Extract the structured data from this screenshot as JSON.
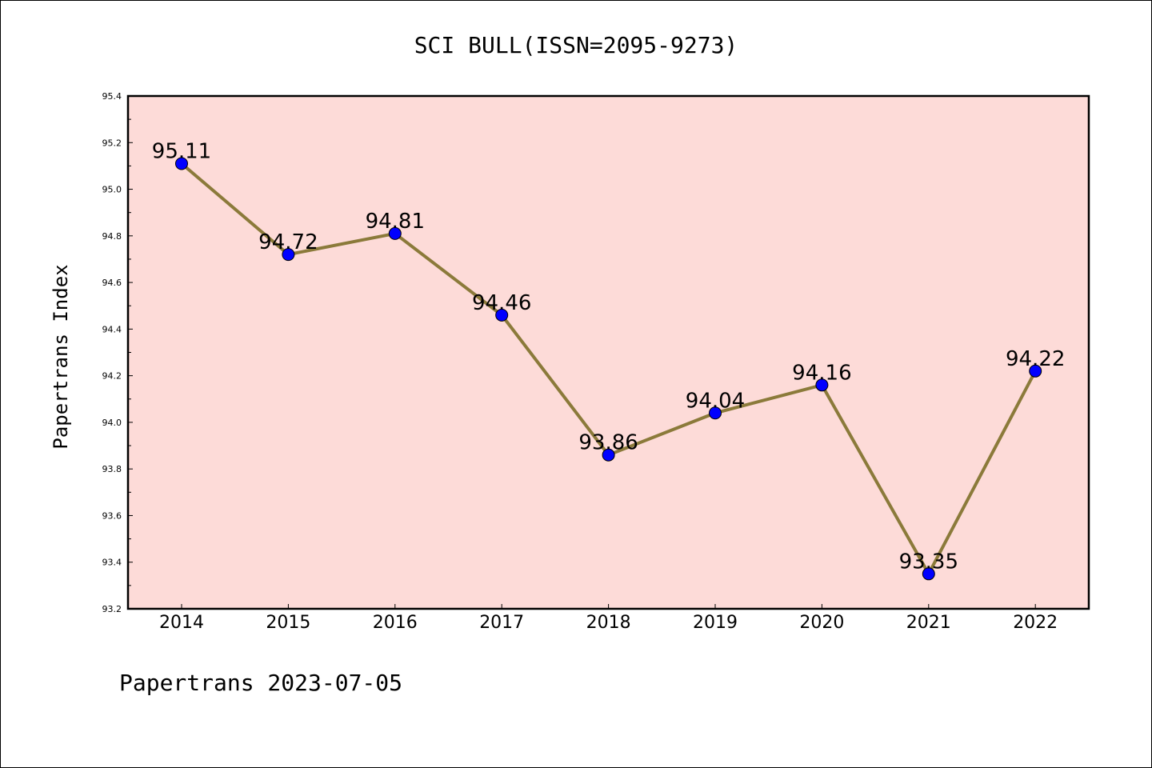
{
  "chart_data": {
    "type": "line",
    "title": "SCI BULL(ISSN=2095-9273)",
    "ylabel": "Papertrans Index",
    "xlabel": "",
    "categories": [
      "2014",
      "2015",
      "2016",
      "2017",
      "2018",
      "2019",
      "2020",
      "2021",
      "2022"
    ],
    "series": [
      {
        "values": [
          95.11,
          94.72,
          94.81,
          94.46,
          93.86,
          94.04,
          94.16,
          93.35,
          94.22
        ],
        "data_labels": [
          "95.11",
          "94.72",
          "94.81",
          "94.46",
          "93.86",
          "94.04",
          "94.16",
          "93.35",
          "94.22"
        ]
      }
    ],
    "ylim": [
      93.2,
      95.4
    ],
    "yticks": [
      "93.2",
      "93.4",
      "93.6",
      "93.8",
      "94.0",
      "94.2",
      "94.4",
      "94.6",
      "94.8",
      "95.0",
      "95.2",
      "95.4"
    ],
    "grid": false,
    "colors": {
      "plot_background": "#fddbd8",
      "line": "#8b7a3a",
      "marker": "#0000ff"
    }
  },
  "footer": "Papertrans 2023-07-05"
}
